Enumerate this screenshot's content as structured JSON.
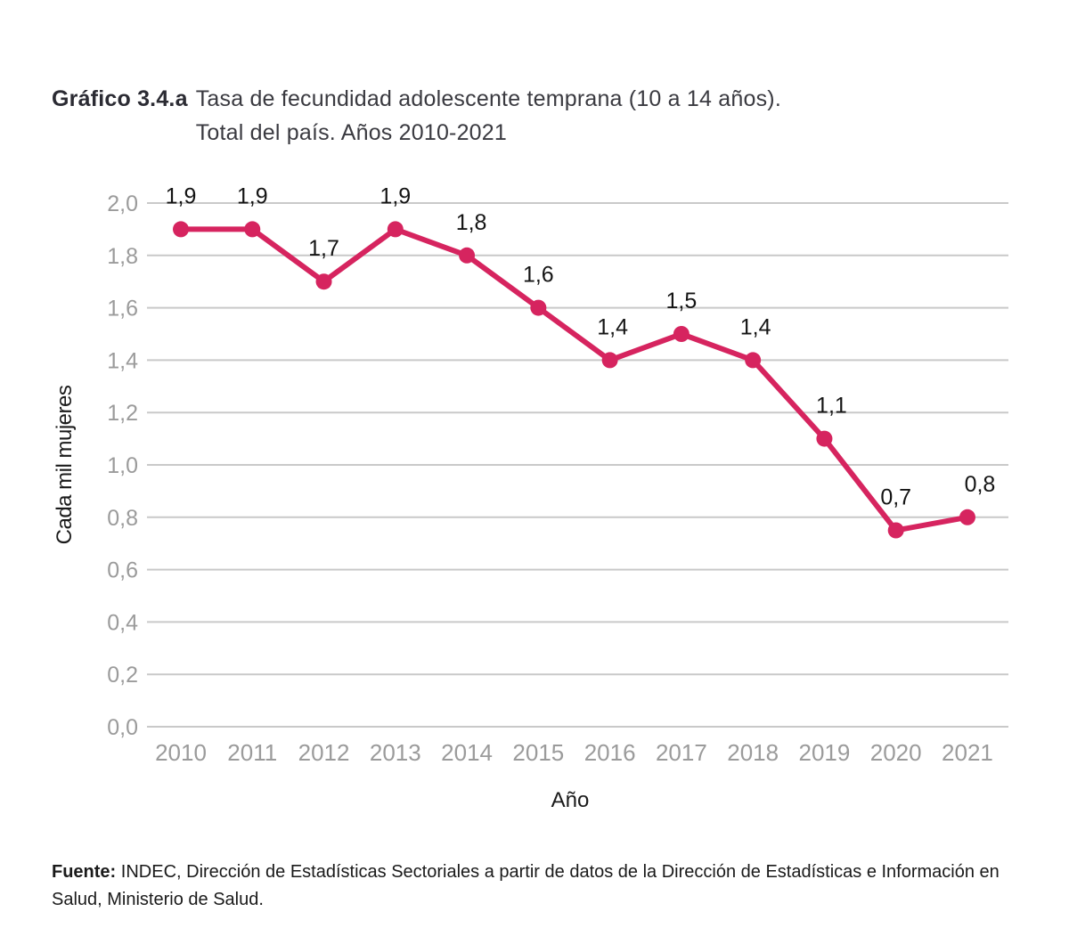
{
  "title": {
    "prefix": "Gráfico 3.4.a",
    "line1": "Tasa de fecundidad adolescente temprana (10 a 14 años).",
    "line2": "Total del país. Años 2010-2021"
  },
  "chart_data": {
    "type": "line",
    "x": [
      "2010",
      "2011",
      "2012",
      "2013",
      "2014",
      "2015",
      "2016",
      "2017",
      "2018",
      "2019",
      "2020",
      "2021"
    ],
    "values": [
      1.9,
      1.9,
      1.7,
      1.9,
      1.8,
      1.6,
      1.4,
      1.5,
      1.4,
      1.1,
      0.7,
      0.8
    ],
    "plotted_values": [
      1.9,
      1.9,
      1.7,
      1.9,
      1.8,
      1.6,
      1.4,
      1.5,
      1.4,
      1.1,
      0.75,
      0.8
    ],
    "point_labels": [
      "1,9",
      "1,9",
      "1,7",
      "1,9",
      "1,8",
      "1,6",
      "1,4",
      "1,5",
      "1,4",
      "1,1",
      "0,7",
      "0,8"
    ],
    "xlabel": "Año",
    "ylabel": "Cada mil mujeres",
    "ylim": [
      0,
      2
    ],
    "ytick_step": 0.2,
    "ytick_labels_top_to_bottom": [
      "2,0",
      "1,8",
      "1,6",
      "1,4",
      "1,2",
      "1,0",
      "0,8",
      "0,6",
      "0,4",
      "0,2",
      "0,0"
    ],
    "grid": true,
    "legend": "none",
    "colors": {
      "line": "#d6245f",
      "marker": "#d6245f",
      "grid": "#c9c9c9",
      "tick_text": "#9b9b9b",
      "point_label_text": "#141414",
      "axis_title_text": "#1a1a1a"
    }
  },
  "source": {
    "label": "Fuente:",
    "text": "INDEC, Dirección de Estadísticas Sectoriales a partir de datos de la Dirección de Estadísticas e Información en Salud, Ministerio de Salud."
  }
}
